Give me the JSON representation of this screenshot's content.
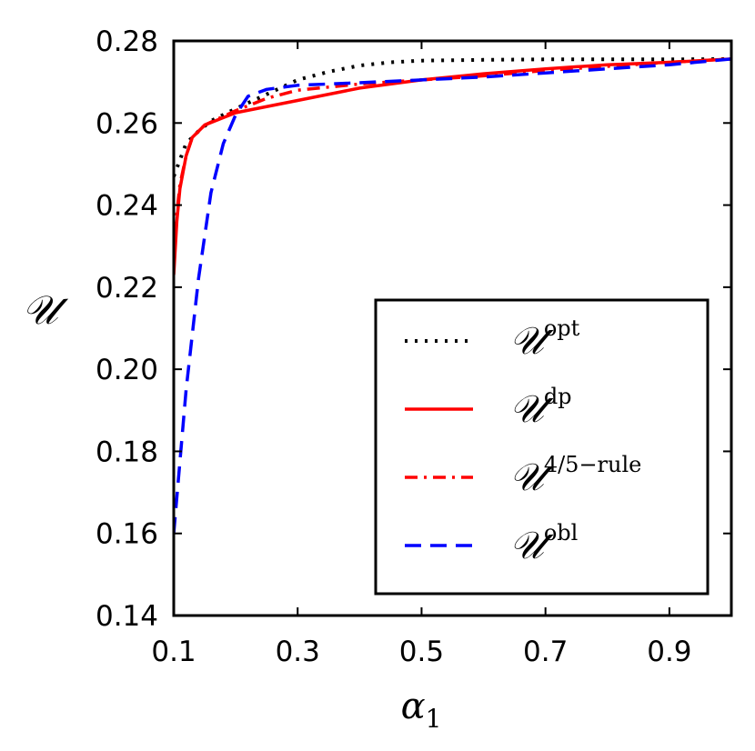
{
  "chart_data": {
    "type": "line",
    "title": "",
    "xlabel": "α",
    "xlabel_sub": "1",
    "ylabel": "𝒰",
    "xlim": [
      0.1,
      1.0
    ],
    "ylim": [
      0.14,
      0.28
    ],
    "x_ticks": [
      0.1,
      0.3,
      0.5,
      0.7,
      0.9
    ],
    "x_tick_labels": [
      "0.1",
      "0.3",
      "0.5",
      "0.7",
      "0.9"
    ],
    "y_ticks": [
      0.14,
      0.16,
      0.18,
      0.2,
      0.22,
      0.24,
      0.26,
      0.28
    ],
    "y_tick_labels": [
      "0.14",
      "0.16",
      "0.18",
      "0.20",
      "0.22",
      "0.24",
      "0.26",
      "0.28"
    ],
    "grid": false,
    "legend_position": "lower-right",
    "series": [
      {
        "name": "opt",
        "label_base": "𝒰",
        "label_sup": "opt",
        "color": "#000000",
        "style": "dotted",
        "x": [
          0.1,
          0.11,
          0.12,
          0.14,
          0.16,
          0.2,
          0.25,
          0.3,
          0.35,
          0.4,
          0.45,
          0.5,
          0.6,
          0.7,
          0.8,
          0.9,
          1.0
        ],
        "y": [
          0.247,
          0.251,
          0.255,
          0.258,
          0.2605,
          0.2635,
          0.267,
          0.2705,
          0.2725,
          0.274,
          0.2748,
          0.2752,
          0.2754,
          0.2755,
          0.2755,
          0.2755,
          0.2756
        ]
      },
      {
        "name": "dp",
        "label_base": "𝒰",
        "label_sup": "dp",
        "color": "#ff0000",
        "style": "solid",
        "x": [
          0.1,
          0.105,
          0.11,
          0.12,
          0.13,
          0.15,
          0.2,
          0.3,
          0.4,
          0.5,
          0.6,
          0.7,
          0.8,
          0.9,
          1.0
        ],
        "y": [
          0.223,
          0.236,
          0.244,
          0.252,
          0.2565,
          0.2595,
          0.2625,
          0.2655,
          0.2685,
          0.2705,
          0.272,
          0.2732,
          0.2742,
          0.2748,
          0.2756
        ]
      },
      {
        "name": "rule",
        "label_base": "𝒰",
        "label_sup": "4/5−rule",
        "color": "#ff0000",
        "style": "dashdot",
        "x": [
          0.1,
          0.105,
          0.11,
          0.12,
          0.13,
          0.15,
          0.2,
          0.25,
          0.3,
          0.4,
          0.5,
          0.6,
          0.7,
          0.8,
          0.9,
          1.0
        ],
        "y": [
          0.226,
          0.238,
          0.245,
          0.252,
          0.2565,
          0.2595,
          0.263,
          0.266,
          0.268,
          0.2695,
          0.2705,
          0.2715,
          0.2728,
          0.2738,
          0.2748,
          0.2756
        ]
      },
      {
        "name": "obl",
        "label_base": "𝒰",
        "label_sup": "obl",
        "color": "#0000ff",
        "style": "dashed",
        "x": [
          0.1,
          0.12,
          0.14,
          0.16,
          0.18,
          0.2,
          0.22,
          0.25,
          0.3,
          0.4,
          0.5,
          0.6,
          0.7,
          0.8,
          0.9,
          1.0
        ],
        "y": [
          0.16,
          0.195,
          0.222,
          0.243,
          0.255,
          0.262,
          0.2665,
          0.2682,
          0.2692,
          0.2698,
          0.2705,
          0.2712,
          0.2722,
          0.2732,
          0.2742,
          0.2756
        ]
      }
    ]
  }
}
